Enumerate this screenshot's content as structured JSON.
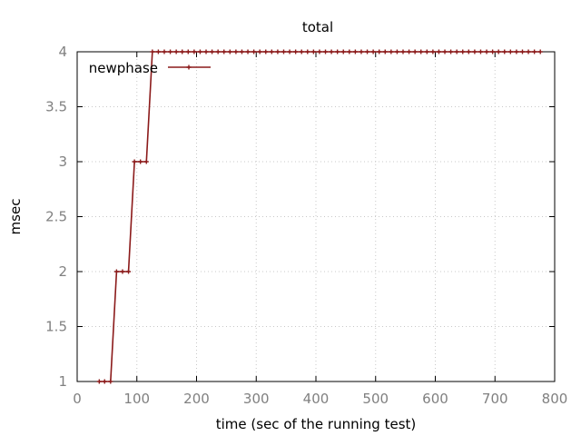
{
  "chart_data": {
    "type": "line",
    "title": "total",
    "xlabel": "time (sec of the running test)",
    "ylabel": "msec",
    "xlim": [
      0,
      800
    ],
    "ylim": [
      1,
      4
    ],
    "xticks": [
      "0",
      "100",
      "200",
      "300",
      "400",
      "500",
      "600",
      "700",
      "800"
    ],
    "yticks": [
      "1",
      "1.5",
      "2",
      "2.5",
      "3",
      "3.5",
      "4"
    ],
    "grid": true,
    "legend_position": "top-left",
    "color": "#8b1a1a",
    "series": [
      {
        "name": "newphase",
        "x": [
          37,
          46,
          56,
          66,
          76,
          86,
          96,
          106,
          116,
          126,
          136,
          146,
          156,
          166,
          176,
          186,
          196,
          206,
          216,
          226,
          236,
          246,
          256,
          266,
          276,
          286,
          296,
          306,
          316,
          326,
          336,
          346,
          356,
          366,
          376,
          386,
          396,
          406,
          416,
          426,
          436,
          446,
          456,
          466,
          476,
          486,
          496,
          506,
          516,
          526,
          536,
          546,
          556,
          566,
          576,
          586,
          596,
          606,
          616,
          626,
          636,
          646,
          656,
          666,
          676,
          686,
          696,
          706,
          716,
          726,
          736,
          746,
          756,
          766,
          776
        ],
        "y": [
          1,
          1,
          1,
          2,
          2,
          2,
          3,
          3,
          3,
          4,
          4,
          4,
          4,
          4,
          4,
          4,
          4,
          4,
          4,
          4,
          4,
          4,
          4,
          4,
          4,
          4,
          4,
          4,
          4,
          4,
          4,
          4,
          4,
          4,
          4,
          4,
          4,
          4,
          4,
          4,
          4,
          4,
          4,
          4,
          4,
          4,
          4,
          4,
          4,
          4,
          4,
          4,
          4,
          4,
          4,
          4,
          4,
          4,
          4,
          4,
          4,
          4,
          4,
          4,
          4,
          4,
          4,
          4,
          4,
          4,
          4,
          4,
          4,
          4,
          4
        ]
      }
    ]
  }
}
